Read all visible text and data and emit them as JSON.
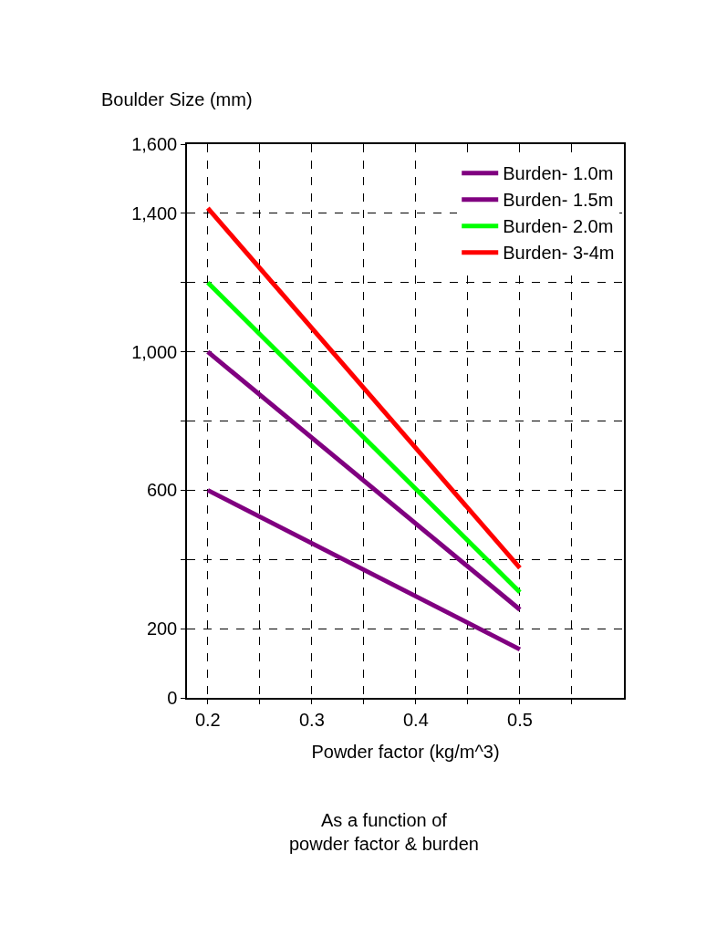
{
  "chart_data": {
    "type": "line",
    "ylabel": "Boulder Size (mm)",
    "xlabel": "Powder factor (kg/m^3)",
    "annotations": [
      "As a function of  powder factor & burden"
    ],
    "x": [
      0.2,
      0.5
    ],
    "series": [
      {
        "name": "Burden- 1.0m",
        "color": "#800080",
        "values": [
          600,
          140
        ]
      },
      {
        "name": "Burden- 1.5m",
        "color": "#800080",
        "values": [
          1000,
          255
        ]
      },
      {
        "name": "Burden- 2.0m",
        "color": "#00ff00",
        "values": [
          1200,
          305
        ]
      },
      {
        "name": "Burden- 3-4m",
        "color": "#ff0000",
        "values": [
          1415,
          375
        ]
      }
    ],
    "xlim": [
      0.18,
      0.6
    ],
    "xticks": [
      0.2,
      {
        "value": 0.25,
        "label": null
      },
      0.3,
      {
        "value": 0.35,
        "label": null
      },
      0.4,
      {
        "value": 0.45,
        "label": null
      },
      0.5,
      {
        "value": 0.55,
        "label": null
      }
    ],
    "ylim": [
      0,
      1600
    ],
    "yticks": [
      0,
      200,
      {
        "value": 400,
        "label": null
      },
      600,
      {
        "value": 800,
        "label": null
      },
      {
        "value": 1000,
        "label": "1,000"
      },
      {
        "value": 1200,
        "label": null
      },
      {
        "value": 1400,
        "label": "1,400"
      },
      {
        "value": 1600,
        "label": "1,600"
      }
    ],
    "grid": true,
    "legend": "top right",
    "line_style": "solid",
    "marker": "none"
  }
}
